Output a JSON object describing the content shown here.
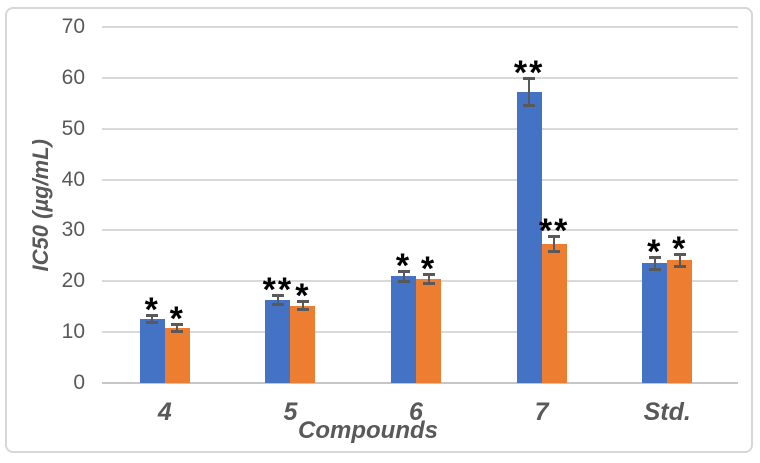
{
  "chart_data": {
    "type": "bar",
    "title": "",
    "xlabel": "Compounds",
    "ylabel": "IC50 (µg/mL)",
    "ylim": [
      0,
      70
    ],
    "yticks": [
      0,
      10,
      20,
      30,
      40,
      50,
      60,
      70
    ],
    "grid": true,
    "legend_position": "none",
    "error_bars": true,
    "categories": [
      "4",
      "5",
      "6",
      "7",
      "Std."
    ],
    "series": [
      {
        "name": "series-1-blue",
        "color": "#4472C4",
        "values": [
          12.6,
          16.4,
          21.0,
          57.2,
          23.5
        ],
        "errors": [
          0.8,
          1.0,
          1.1,
          2.7,
          1.2
        ],
        "significance": [
          "*",
          "**",
          "*",
          "**",
          "*"
        ]
      },
      {
        "name": "series-2-orange",
        "color": "#ED7D31",
        "values": [
          10.8,
          15.2,
          20.4,
          27.3,
          24.1
        ],
        "errors": [
          0.8,
          0.9,
          1.0,
          1.6,
          1.3
        ],
        "significance": [
          "*",
          "*",
          "*",
          "**",
          "*"
        ]
      }
    ]
  },
  "colors": {
    "grid": "#D9D9D9",
    "axis_line": "#C6C6C6",
    "axis_text": "#595959",
    "error_bar": "#595959",
    "significance": "#000000",
    "frame_border": "#D7D7D7",
    "background": "#FFFFFF"
  }
}
